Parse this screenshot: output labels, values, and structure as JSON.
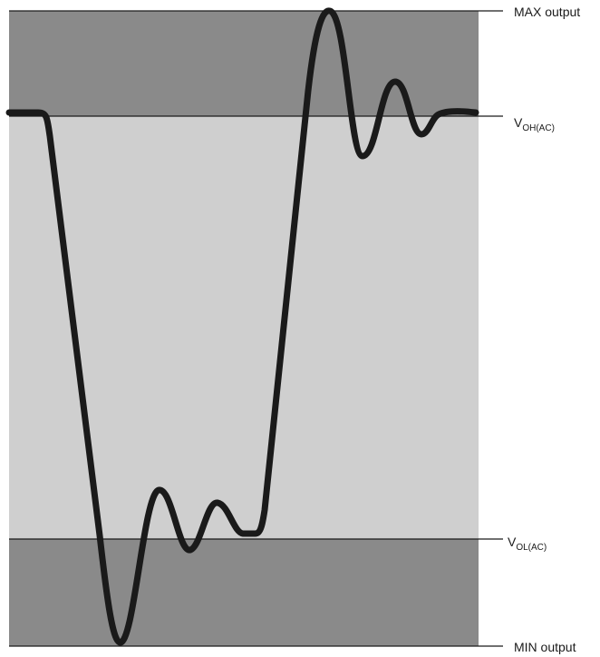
{
  "labels": {
    "max_output": "MAX output",
    "voh_main": "V",
    "voh_sub": "OH(AC)",
    "vol_main": "V",
    "vol_sub": "OL(AC)",
    "min_output": "MIN output"
  },
  "colors": {
    "outer_band": "#8a8a8a",
    "inner_band": "#cfcfcf",
    "reference_line": "#1a1a1a",
    "waveform": "#1a1a1a"
  }
}
